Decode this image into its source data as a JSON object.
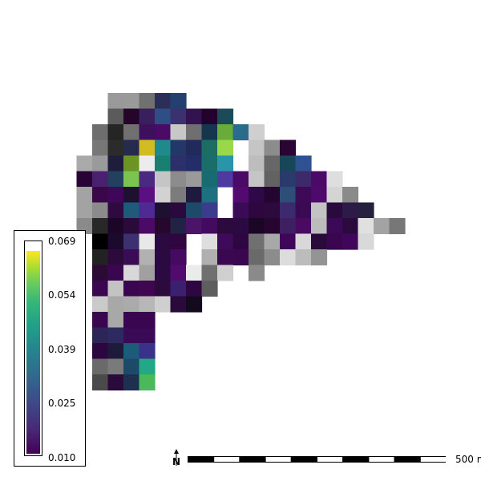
{
  "map": {
    "cells": [
      [
        1,
        0,
        "#999999"
      ],
      [
        2,
        0,
        "#9a9a9a"
      ],
      [
        3,
        0,
        "#707070"
      ],
      [
        4,
        0,
        "#2b2f58"
      ],
      [
        5,
        0,
        "#23406e"
      ],
      [
        1,
        1,
        "#5b5b5b"
      ],
      [
        2,
        1,
        "#26052b"
      ],
      [
        3,
        1,
        "#3a1f5e"
      ],
      [
        4,
        1,
        "#2f4e86"
      ],
      [
        5,
        1,
        "#3b3070"
      ],
      [
        6,
        1,
        "#32124f"
      ],
      [
        7,
        1,
        "#22032e"
      ],
      [
        8,
        1,
        "#1b4a5a"
      ],
      [
        0,
        2,
        "#6e6e6e"
      ],
      [
        1,
        2,
        "#252525"
      ],
      [
        2,
        2,
        "#707070"
      ],
      [
        3,
        2,
        "#3d0f5c"
      ],
      [
        4,
        2,
        "#4a0b66"
      ],
      [
        5,
        2,
        "#c7c7c7"
      ],
      [
        6,
        2,
        "#6f6f6f"
      ],
      [
        7,
        2,
        "#16364e"
      ],
      [
        8,
        2,
        "#6aac3a"
      ],
      [
        9,
        2,
        "#2a6c8c"
      ],
      [
        10,
        2,
        "#cfcfcf"
      ],
      [
        0,
        3,
        "#777777"
      ],
      [
        1,
        3,
        "#2b2b2b"
      ],
      [
        2,
        3,
        "#262a4e"
      ],
      [
        3,
        3,
        "#d1bd22"
      ],
      [
        4,
        3,
        "#1f8a89"
      ],
      [
        5,
        3,
        "#243769"
      ],
      [
        6,
        3,
        "#222a5c"
      ],
      [
        7,
        3,
        "#1c6e64"
      ],
      [
        8,
        3,
        "#9ad84a"
      ],
      [
        10,
        3,
        "#c5c5c5"
      ],
      [
        11,
        3,
        "#8c8c8c"
      ],
      [
        12,
        3,
        "#2a0433"
      ],
      [
        -1,
        4,
        "#aaaaaa"
      ],
      [
        0,
        4,
        "#9a9a9a"
      ],
      [
        1,
        4,
        "#1e1e3c"
      ],
      [
        2,
        4,
        "#6c9424"
      ],
      [
        3,
        4,
        "#ececec"
      ],
      [
        4,
        4,
        "#178070"
      ],
      [
        5,
        4,
        "#2c2f6a"
      ],
      [
        6,
        4,
        "#232e68"
      ],
      [
        7,
        4,
        "#1a6e6a"
      ],
      [
        8,
        4,
        "#2a94a8"
      ],
      [
        10,
        4,
        "#bdbdbd"
      ],
      [
        11,
        4,
        "#676767"
      ],
      [
        12,
        4,
        "#17465a"
      ],
      [
        13,
        4,
        "#2e5290"
      ],
      [
        -1,
        5,
        "#2a0336"
      ],
      [
        0,
        5,
        "#4a2070"
      ],
      [
        1,
        5,
        "#23415e"
      ],
      [
        2,
        5,
        "#7bc44e"
      ],
      [
        3,
        5,
        "#4a2a80"
      ],
      [
        4,
        5,
        "#c5c5c5"
      ],
      [
        5,
        5,
        "#8c8c8c"
      ],
      [
        6,
        5,
        "#9a9a9a"
      ],
      [
        7,
        5,
        "#1a6a72"
      ],
      [
        8,
        5,
        "#4f3aa0"
      ],
      [
        9,
        5,
        "#4a0a68"
      ],
      [
        10,
        5,
        "#c5c5c5"
      ],
      [
        11,
        5,
        "#626262"
      ],
      [
        12,
        5,
        "#2a3a6a"
      ],
      [
        13,
        5,
        "#3c2a6a"
      ],
      [
        14,
        5,
        "#4a0a66"
      ],
      [
        15,
        5,
        "#dedede"
      ],
      [
        -1,
        6,
        "#a3a3a3"
      ],
      [
        0,
        6,
        "#3a0848"
      ],
      [
        1,
        6,
        "#40065a"
      ],
      [
        2,
        6,
        "#1e1030"
      ],
      [
        3,
        6,
        "#5a1080"
      ],
      [
        4,
        6,
        "#d2d2d2"
      ],
      [
        5,
        6,
        "#7c7c7c"
      ],
      [
        6,
        6,
        "#1e1a3e"
      ],
      [
        7,
        6,
        "#1d7080"
      ],
      [
        9,
        6,
        "#520a6e"
      ],
      [
        10,
        6,
        "#2e0848"
      ],
      [
        11,
        6,
        "#230530"
      ],
      [
        12,
        6,
        "#2c4e78"
      ],
      [
        13,
        6,
        "#3e0a58"
      ],
      [
        14,
        6,
        "#4e0a6a"
      ],
      [
        15,
        6,
        "#d4d4d4"
      ],
      [
        16,
        6,
        "#8a8a8a"
      ],
      [
        -1,
        7,
        "#a3a3a3"
      ],
      [
        0,
        7,
        "#8b8b8b"
      ],
      [
        1,
        7,
        "#2e0a40"
      ],
      [
        2,
        7,
        "#1e5a7a"
      ],
      [
        3,
        7,
        "#4e2a92"
      ],
      [
        4,
        7,
        "#1e1030"
      ],
      [
        5,
        7,
        "#2a0a3e"
      ],
      [
        6,
        7,
        "#1e4a6a"
      ],
      [
        7,
        7,
        "#3c3c8c"
      ],
      [
        9,
        7,
        "#3a0a56"
      ],
      [
        10,
        7,
        "#30063f"
      ],
      [
        11,
        7,
        "#2c0a3e"
      ],
      [
        12,
        7,
        "#3c2a6e"
      ],
      [
        13,
        7,
        "#3a0a52"
      ],
      [
        14,
        7,
        "#c3c3c3"
      ],
      [
        15,
        7,
        "#2a0a3e"
      ],
      [
        16,
        7,
        "#2c1a48"
      ],
      [
        17,
        7,
        "#26203e"
      ],
      [
        -1,
        8,
        "#8a8a8a"
      ],
      [
        0,
        8,
        "#282828"
      ],
      [
        1,
        8,
        "#1c0628"
      ],
      [
        2,
        8,
        "#2a0a3a"
      ],
      [
        3,
        8,
        "#4a0a66"
      ],
      [
        4,
        8,
        "#26082e"
      ],
      [
        5,
        8,
        "#222244"
      ],
      [
        6,
        8,
        "#4a1468"
      ],
      [
        7,
        8,
        "#440a60"
      ],
      [
        8,
        8,
        "#2c0a3e"
      ],
      [
        9,
        8,
        "#2a0a40"
      ],
      [
        10,
        8,
        "#1c0626"
      ],
      [
        11,
        8,
        "#260630"
      ],
      [
        12,
        8,
        "#3e2062"
      ],
      [
        13,
        8,
        "#4a0a62"
      ],
      [
        14,
        8,
        "#bcbcbc"
      ],
      [
        15,
        8,
        "#3a0a56"
      ],
      [
        16,
        8,
        "#2c0a3e"
      ],
      [
        17,
        8,
        "#e0e0e0"
      ],
      [
        18,
        8,
        "#a3a3a3"
      ],
      [
        19,
        8,
        "#777777"
      ],
      [
        0,
        9,
        "#000000"
      ],
      [
        1,
        9,
        "#1c0a2e"
      ],
      [
        2,
        9,
        "#3c3070"
      ],
      [
        3,
        9,
        "#e8e8e8"
      ],
      [
        4,
        9,
        "#2a0a40"
      ],
      [
        5,
        9,
        "#300640"
      ],
      [
        7,
        9,
        "#dedede"
      ],
      [
        8,
        9,
        "#3e0a5a"
      ],
      [
        9,
        9,
        "#2e0642"
      ],
      [
        10,
        9,
        "#707070"
      ],
      [
        11,
        9,
        "#a8a8a8"
      ],
      [
        12,
        9,
        "#40065a"
      ],
      [
        13,
        9,
        "#d8d8d8"
      ],
      [
        14,
        9,
        "#2a0a3a"
      ],
      [
        15,
        9,
        "#3a0650"
      ],
      [
        16,
        9,
        "#40065a"
      ],
      [
        17,
        9,
        "#d8d8d8"
      ],
      [
        0,
        10,
        "#222222"
      ],
      [
        1,
        10,
        "#2c0a3c"
      ],
      [
        2,
        10,
        "#3a0c56"
      ],
      [
        3,
        10,
        "#b1b1b1"
      ],
      [
        4,
        10,
        "#2a0a40"
      ],
      [
        5,
        10,
        "#460a60"
      ],
      [
        7,
        10,
        "#b0b0b0"
      ],
      [
        8,
        10,
        "#3a0850"
      ],
      [
        9,
        10,
        "#3a0650"
      ],
      [
        10,
        10,
        "#6a6a6a"
      ],
      [
        11,
        10,
        "#8c8c8c"
      ],
      [
        12,
        10,
        "#dcdcdc"
      ],
      [
        13,
        10,
        "#bcbcbc"
      ],
      [
        14,
        10,
        "#949494"
      ],
      [
        0,
        11,
        "#2c0a36"
      ],
      [
        1,
        11,
        "#3a0650"
      ],
      [
        2,
        11,
        "#d8d8d8"
      ],
      [
        3,
        11,
        "#a0a0a0"
      ],
      [
        4,
        11,
        "#2a0a40"
      ],
      [
        5,
        11,
        "#520a6e"
      ],
      [
        6,
        11,
        "#ebebeb"
      ],
      [
        7,
        11,
        "#707070"
      ],
      [
        8,
        11,
        "#cfcfcf"
      ],
      [
        10,
        11,
        "#8a8a8a"
      ],
      [
        0,
        12,
        "#3a0650"
      ],
      [
        1,
        12,
        "#c3c3c3"
      ],
      [
        2,
        12,
        "#3a0650"
      ],
      [
        3,
        12,
        "#400650"
      ],
      [
        4,
        12,
        "#2c0a3e"
      ],
      [
        5,
        12,
        "#3c2070"
      ],
      [
        6,
        12,
        "#2e0642"
      ],
      [
        7,
        12,
        "#5e5e5e"
      ],
      [
        0,
        13,
        "#cacaca"
      ],
      [
        1,
        13,
        "#a8a8a8"
      ],
      [
        2,
        13,
        "#ababab"
      ],
      [
        3,
        13,
        "#b7b7b7"
      ],
      [
        4,
        13,
        "#cfcfcf"
      ],
      [
        5,
        13,
        "#2a0a3a"
      ],
      [
        6,
        13,
        "#140a1e"
      ],
      [
        0,
        14,
        "#3a0650"
      ],
      [
        1,
        14,
        "#a8a8a8"
      ],
      [
        2,
        14,
        "#3a0650"
      ],
      [
        3,
        14,
        "#3a0650"
      ],
      [
        0,
        15,
        "#2c2658"
      ],
      [
        1,
        15,
        "#2c2a60"
      ],
      [
        2,
        15,
        "#3a0a56"
      ],
      [
        3,
        15,
        "#3a0a56"
      ],
      [
        0,
        16,
        "#2c063e"
      ],
      [
        1,
        16,
        "#1e1a3c"
      ],
      [
        2,
        16,
        "#1c5c7a"
      ],
      [
        3,
        16,
        "#3a3288"
      ],
      [
        0,
        17,
        "#6a6a6a"
      ],
      [
        1,
        17,
        "#7a7a7a"
      ],
      [
        2,
        17,
        "#1e4a6a"
      ],
      [
        3,
        17,
        "#22a884"
      ],
      [
        0,
        18,
        "#4a4a4a"
      ],
      [
        1,
        18,
        "#2a0a3a"
      ],
      [
        2,
        18,
        "#1e3050"
      ],
      [
        3,
        18,
        "#4cb85c"
      ]
    ]
  },
  "legend": {
    "colormap": "viridis",
    "ticks": [
      "0.069",
      "0.054",
      "0.039",
      "0.025",
      "0.010"
    ]
  },
  "scalebar": {
    "label": "500 m",
    "segments": 10
  },
  "north_arrow": {
    "label": "N"
  }
}
